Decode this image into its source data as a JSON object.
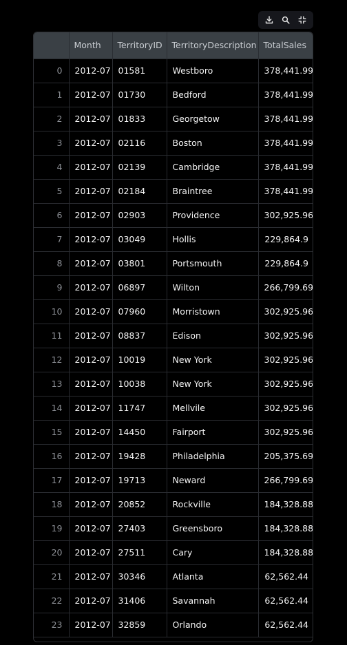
{
  "toolbar": {
    "icons": [
      "download-icon",
      "search-icon",
      "fullscreen-icon"
    ]
  },
  "table": {
    "columns": [
      "",
      "Month",
      "TerritoryID",
      "TerritoryDescription",
      "TotalSales"
    ],
    "rows": [
      [
        "0",
        "2012-07",
        "01581",
        "Westboro",
        "378,441.99"
      ],
      [
        "1",
        "2012-07",
        "01730",
        "Bedford",
        "378,441.99"
      ],
      [
        "2",
        "2012-07",
        "01833",
        "Georgetow",
        "378,441.99"
      ],
      [
        "3",
        "2012-07",
        "02116",
        "Boston",
        "378,441.99"
      ],
      [
        "4",
        "2012-07",
        "02139",
        "Cambridge",
        "378,441.99"
      ],
      [
        "5",
        "2012-07",
        "02184",
        "Braintree",
        "378,441.99"
      ],
      [
        "6",
        "2012-07",
        "02903",
        "Providence",
        "302,925.96"
      ],
      [
        "7",
        "2012-07",
        "03049",
        "Hollis",
        "229,864.9"
      ],
      [
        "8",
        "2012-07",
        "03801",
        "Portsmouth",
        "229,864.9"
      ],
      [
        "9",
        "2012-07",
        "06897",
        "Wilton",
        "266,799.69"
      ],
      [
        "10",
        "2012-07",
        "07960",
        "Morristown",
        "302,925.96"
      ],
      [
        "11",
        "2012-07",
        "08837",
        "Edison",
        "302,925.96"
      ],
      [
        "12",
        "2012-07",
        "10019",
        "New York",
        "302,925.96"
      ],
      [
        "13",
        "2012-07",
        "10038",
        "New York",
        "302,925.96"
      ],
      [
        "14",
        "2012-07",
        "11747",
        "Mellvile",
        "302,925.96"
      ],
      [
        "15",
        "2012-07",
        "14450",
        "Fairport",
        "302,925.96"
      ],
      [
        "16",
        "2012-07",
        "19428",
        "Philadelphia",
        "205,375.69"
      ],
      [
        "17",
        "2012-07",
        "19713",
        "Neward",
        "266,799.69"
      ],
      [
        "18",
        "2012-07",
        "20852",
        "Rockville",
        "184,328.88"
      ],
      [
        "19",
        "2012-07",
        "27403",
        "Greensboro",
        "184,328.88"
      ],
      [
        "20",
        "2012-07",
        "27511",
        "Cary",
        "184,328.88"
      ],
      [
        "21",
        "2012-07",
        "30346",
        "Atlanta",
        "62,562.44"
      ],
      [
        "22",
        "2012-07",
        "31406",
        "Savannah",
        "62,562.44"
      ],
      [
        "23",
        "2012-07",
        "32859",
        "Orlando",
        "62,562.44"
      ]
    ]
  }
}
